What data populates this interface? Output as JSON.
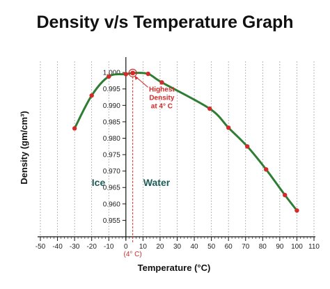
{
  "chart_data": {
    "type": "line",
    "title": "Density v/s Temperature Graph",
    "xlabel": "Temperature (°C)",
    "ylabel": "Density (gm/cm³)",
    "xlim": [
      -50,
      110
    ],
    "ylim": [
      0.95,
      1.003
    ],
    "x_ticks": [
      -50,
      -40,
      -30,
      -20,
      -10,
      0,
      10,
      20,
      30,
      40,
      50,
      60,
      70,
      80,
      90,
      100,
      110
    ],
    "y_ticks": [
      0.955,
      0.96,
      0.965,
      0.97,
      0.975,
      0.98,
      0.985,
      0.99,
      0.995,
      1.0
    ],
    "y_tick_labels": [
      "0.955",
      "0.960",
      "0.965",
      "0.970",
      "0.975",
      "0.980",
      "0.985",
      "0.990",
      "0.995",
      "1.000"
    ],
    "grid": "vertical dashed",
    "series": [
      {
        "x": [
          -30,
          -20,
          -10,
          0,
          4,
          13,
          21,
          49,
          60,
          71,
          82,
          93,
          100
        ],
        "y": [
          0.983,
          0.993,
          0.9988,
          0.9995,
          0.99985,
          0.9996,
          0.997,
          0.989,
          0.9832,
          0.9775,
          0.9705,
          0.9627,
          0.958
        ],
        "color": "#2e7d32",
        "marker_color": "#d42a2a"
      }
    ],
    "annotations": {
      "highlight_point": {
        "x": 4,
        "y": 0.99985
      },
      "highlight_label": [
        "Highest",
        "Density",
        "at 4° C"
      ],
      "x_marker_label": "(4° C)",
      "region_left": "Ice",
      "region_right": "Water"
    }
  }
}
